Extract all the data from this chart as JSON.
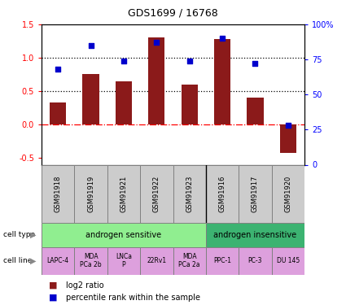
{
  "title": "GDS1699 / 16768",
  "samples": [
    "GSM91918",
    "GSM91919",
    "GSM91921",
    "GSM91922",
    "GSM91923",
    "GSM91916",
    "GSM91917",
    "GSM91920"
  ],
  "log2_ratio": [
    0.33,
    0.76,
    0.65,
    1.3,
    0.6,
    1.28,
    0.4,
    -0.42
  ],
  "percentile_rank": [
    68,
    85,
    74,
    87,
    74,
    90,
    72,
    28
  ],
  "bar_color": "#8B1A1A",
  "dot_color": "#0000CC",
  "ylim_left": [
    -0.6,
    1.5
  ],
  "ylim_right": [
    0,
    100
  ],
  "left_ticks": [
    -0.5,
    0.0,
    0.5,
    1.0,
    1.5
  ],
  "right_ticks": [
    0,
    25,
    50,
    75,
    100
  ],
  "right_tick_labels": [
    "0",
    "25",
    "50",
    "75",
    "100%"
  ],
  "hline_dotted": [
    0.5,
    1.0
  ],
  "hline_dashdot_red": 0.0,
  "cell_types": [
    {
      "label": "androgen sensitive",
      "span": [
        0,
        5
      ],
      "color": "#90EE90"
    },
    {
      "label": "androgen insensitive",
      "span": [
        5,
        8
      ],
      "color": "#3CB371"
    }
  ],
  "cell_lines": [
    {
      "label": "LAPC-4",
      "span": [
        0,
        1
      ]
    },
    {
      "label": "MDA\nPCa 2b",
      "span": [
        1,
        2
      ]
    },
    {
      "label": "LNCa\nP",
      "span": [
        2,
        3
      ]
    },
    {
      "label": "22Rv1",
      "span": [
        3,
        4
      ]
    },
    {
      "label": "MDA\nPCa 2a",
      "span": [
        4,
        5
      ]
    },
    {
      "label": "PPC-1",
      "span": [
        5,
        6
      ]
    },
    {
      "label": "PC-3",
      "span": [
        6,
        7
      ]
    },
    {
      "label": "DU 145",
      "span": [
        7,
        8
      ]
    }
  ],
  "cell_line_color": "#DDA0DD",
  "sample_box_color": "#CCCCCC",
  "n_samples": 8,
  "bar_width": 0.5,
  "dot_size": 22,
  "title_fontsize": 9,
  "tick_fontsize": 7,
  "cell_label_fontsize": 7,
  "cell_line_fontsize": 5.5,
  "legend_fontsize": 7,
  "sample_fontsize": 6
}
